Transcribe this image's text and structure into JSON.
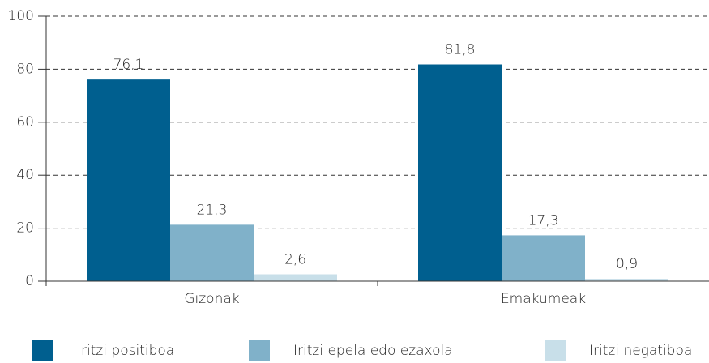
{
  "chart_data": {
    "type": "bar",
    "categories": [
      "Gizonak",
      "Emakumeak"
    ],
    "series": [
      {
        "name": "Iritzi positiboa",
        "color": "#005f8f",
        "values": [
          76.1,
          81.8
        ],
        "value_labels": [
          "76,1",
          "81,8"
        ]
      },
      {
        "name": "Iritzi epela edo ezaxola",
        "color": "#80b1c9",
        "values": [
          21.3,
          17.3
        ],
        "value_labels": [
          "21,3",
          "17,3"
        ]
      },
      {
        "name": "Iritzi negatiboa",
        "color": "#c8dfe9",
        "values": [
          2.6,
          0.9
        ],
        "value_labels": [
          "2,6",
          "0,9"
        ]
      }
    ],
    "ylim": [
      0,
      100
    ],
    "yticks": [
      0,
      20,
      40,
      60,
      80,
      100
    ],
    "grid": true,
    "legend": "bottom"
  }
}
